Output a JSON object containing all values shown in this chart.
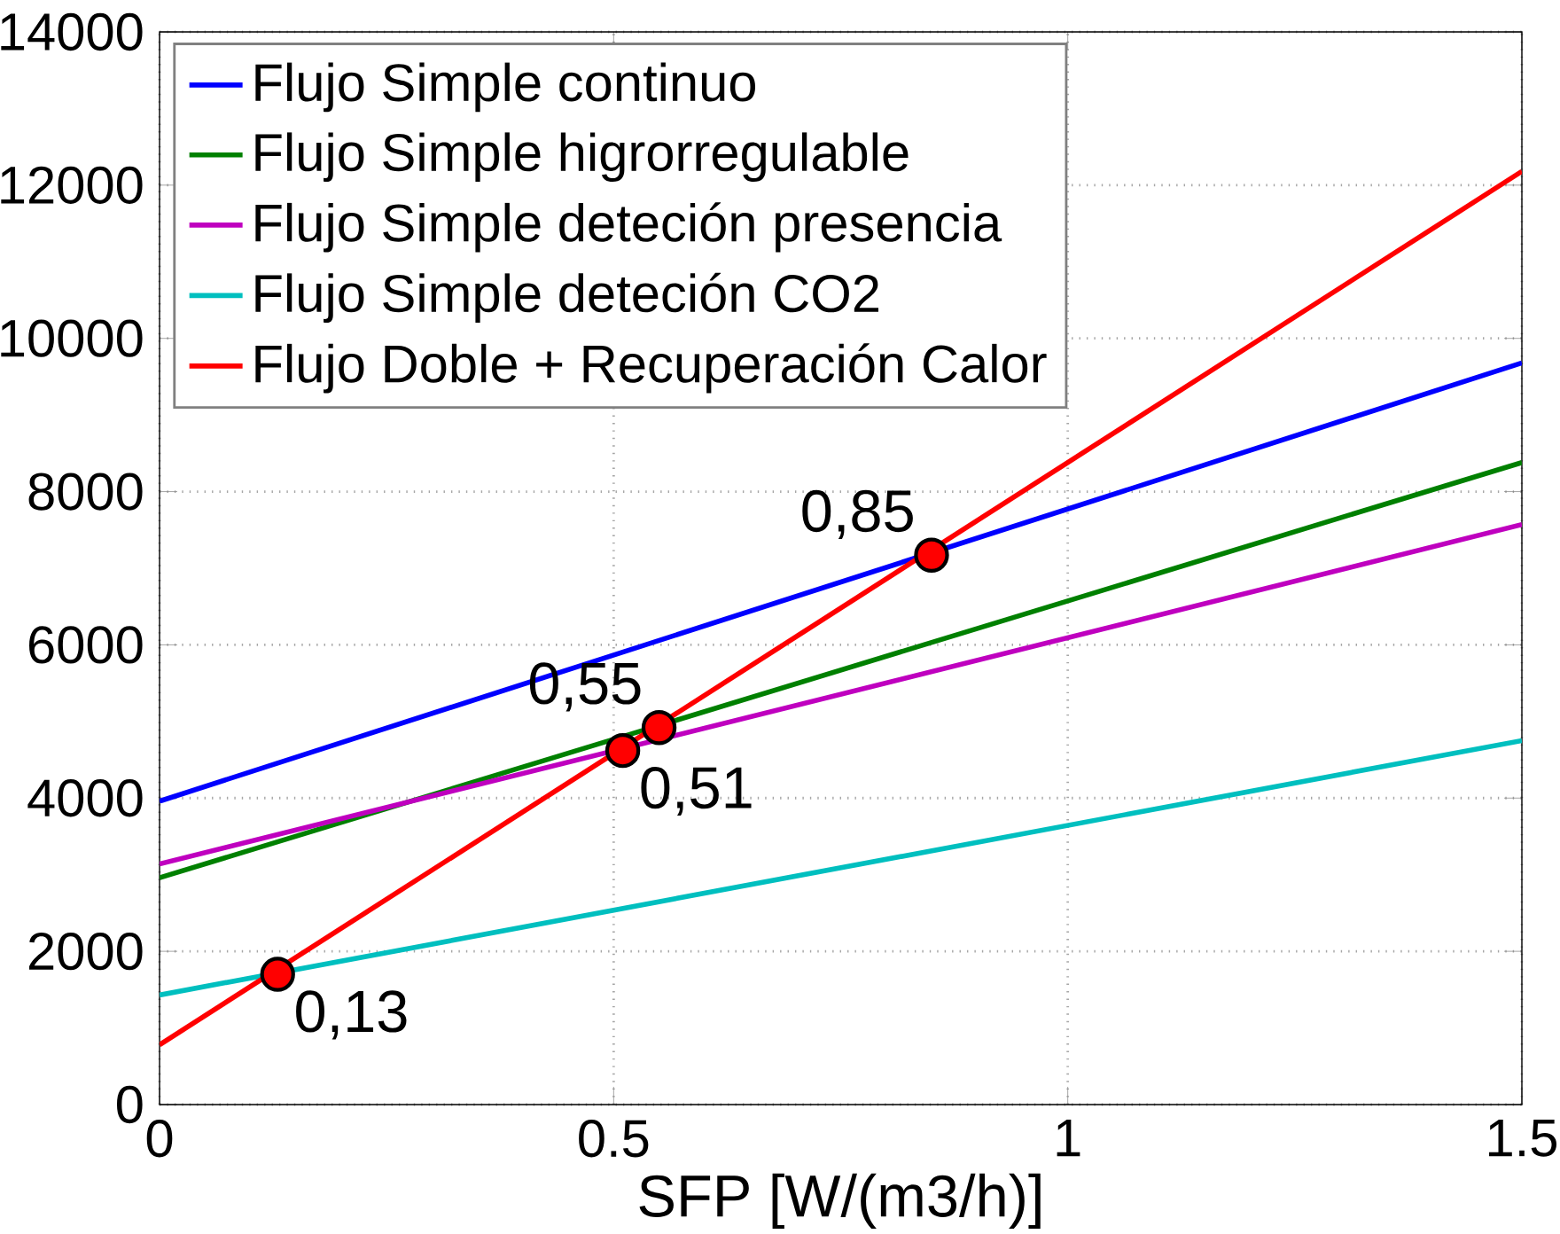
{
  "chart_data": {
    "type": "line",
    "xlabel": "SFP [W/(m3/h)]",
    "x": [
      0,
      1.5
    ],
    "series": [
      {
        "name": "Flujo Simple continuo",
        "color": "#0000ff",
        "values": [
          3960,
          9680
        ]
      },
      {
        "name": "Flujo Simple higrorregulable",
        "color": "#008000",
        "values": [
          2960,
          8380
        ]
      },
      {
        "name": "Flujo Simple deteción presencia",
        "color": "#bf00bf",
        "values": [
          3140,
          7570
        ]
      },
      {
        "name": "Flujo Simple deteción CO2",
        "color": "#00bfbf",
        "values": [
          1430,
          4750
        ]
      },
      {
        "name": "Flujo Doble + Recuperación Calor",
        "color": "#ff0000",
        "values": [
          780,
          12180
        ]
      },
      {
        "type": "scatter",
        "color": "#ff0000",
        "x": [
          0.13,
          0.51,
          0.55,
          0.85
        ],
        "values": [
          1700,
          4620,
          4920,
          7170
        ]
      }
    ],
    "annotations": [
      {
        "text": "0,13",
        "x": 0.13,
        "y": 1700
      },
      {
        "text": "0,51",
        "x": 0.51,
        "y": 4620
      },
      {
        "text": "0,55",
        "x": 0.55,
        "y": 4920
      },
      {
        "text": "0,85",
        "x": 0.85,
        "y": 7170
      }
    ],
    "xlim": [
      0,
      1.5
    ],
    "ylim": [
      0,
      14000
    ],
    "xticks": [
      0,
      0.5,
      1,
      1.5
    ],
    "yticks": [
      0,
      2000,
      4000,
      6000,
      8000,
      10000,
      12000,
      14000
    ],
    "grid": true,
    "legend": "top left",
    "marker": "none",
    "line_style": "solid"
  }
}
